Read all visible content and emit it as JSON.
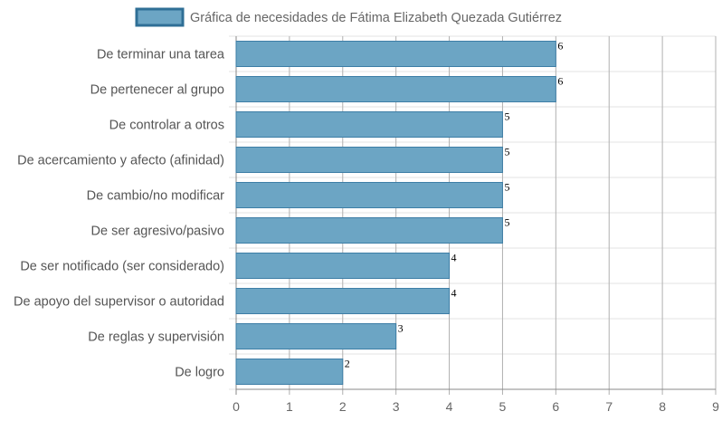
{
  "chart_data": {
    "type": "bar",
    "orientation": "horizontal",
    "legend": {
      "label": "Gráfica de necesidades de Fátima Elizabeth Quezada Gutiérrez",
      "position": "top-center"
    },
    "categories": [
      "De terminar una tarea",
      "De pertenecer al grupo",
      "De controlar a otros",
      "De acercamiento y afecto (afinidad)",
      "De cambio/no modificar",
      "De ser agresivo/pasivo",
      "De ser notificado (ser considerado)",
      "De apoyo del supervisor o autoridad",
      "De reglas y supervisión",
      "De logro"
    ],
    "series": [
      {
        "name": "Gráfica de necesidades de Fátima Elizabeth Quezada Gutiérrez",
        "values": [
          6,
          6,
          5,
          5,
          5,
          5,
          4,
          4,
          3,
          2
        ]
      }
    ],
    "xlim": [
      0,
      9
    ],
    "x_ticks": [
      "0",
      "1",
      "2",
      "3",
      "4",
      "5",
      "6",
      "7",
      "8",
      "9"
    ],
    "grid": true,
    "colors": {
      "bar_fill": "#6ca5c4",
      "bar_stroke": "#3d7ea6",
      "legend_stroke": "#2f6f96",
      "grid": "#e3e3e3",
      "grid_vertical": "#b0b0b0"
    }
  }
}
